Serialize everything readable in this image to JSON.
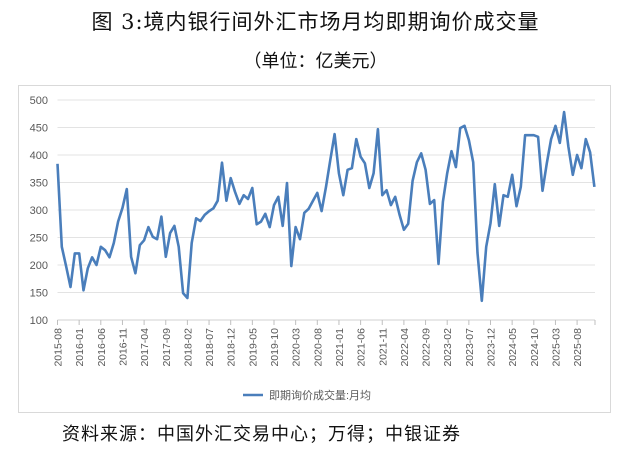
{
  "header": {
    "title": "图 3:境内银行间外汇市场月均即期询价成交量",
    "subtitle": "（单位：亿美元）"
  },
  "footer": {
    "source": "资料来源：中国外汇交易中心；万得；中银证券"
  },
  "colors": {
    "line": "#4a7ebb",
    "grid": "#e3e3e3",
    "axis_text": "#595959"
  },
  "chart_data": {
    "type": "line",
    "title": "境内银行间外汇市场月均即期询价成交量",
    "subtitle": "单位：亿美元",
    "xlabel": "",
    "ylabel": "",
    "ylim": [
      100,
      500
    ],
    "yticks": [
      100,
      150,
      200,
      250,
      300,
      350,
      400,
      450,
      500
    ],
    "grid": true,
    "legend_position": "bottom",
    "xtick_labels": [
      "2015-08",
      "2016-01",
      "2016-06",
      "2016-11",
      "2017-04",
      "2017-09",
      "2018-02",
      "2018-07",
      "2018-12",
      "2019-05",
      "2019-10",
      "2020-03",
      "2020-08",
      "2021-01",
      "2021-06",
      "2021-11",
      "2022-04",
      "2022-09",
      "2023-02",
      "2023-07",
      "2023-12",
      "2024-05",
      "2024-10",
      "2025-03",
      "2025-08"
    ],
    "x_start": "2015-08",
    "x_end": "2025-12",
    "series": [
      {
        "name": "即期询价成交量:月均",
        "values": [
          384,
          233,
          197,
          160,
          221,
          221,
          154,
          194,
          214,
          200,
          233,
          227,
          214,
          240,
          279,
          304,
          338,
          215,
          185,
          236,
          245,
          269,
          251,
          247,
          288,
          215,
          258,
          271,
          233,
          149,
          140,
          240,
          285,
          280,
          291,
          298,
          303,
          317,
          386,
          317,
          358,
          333,
          311,
          327,
          320,
          340,
          274,
          279,
          293,
          269,
          309,
          324,
          271,
          349,
          198,
          269,
          247,
          295,
          302,
          317,
          331,
          298,
          342,
          391,
          438,
          367,
          327,
          373,
          376,
          429,
          397,
          385,
          340,
          367,
          447,
          327,
          336,
          309,
          324,
          291,
          264,
          275,
          353,
          387,
          403,
          373,
          311,
          318,
          202,
          315,
          367,
          407,
          378,
          449,
          453,
          427,
          387,
          222,
          135,
          233,
          276,
          347,
          271,
          327,
          324,
          364,
          307,
          342,
          436,
          436,
          436,
          433,
          335,
          385,
          429,
          453,
          422,
          478,
          415,
          364,
          400,
          376,
          429,
          405,
          342
        ]
      }
    ]
  }
}
